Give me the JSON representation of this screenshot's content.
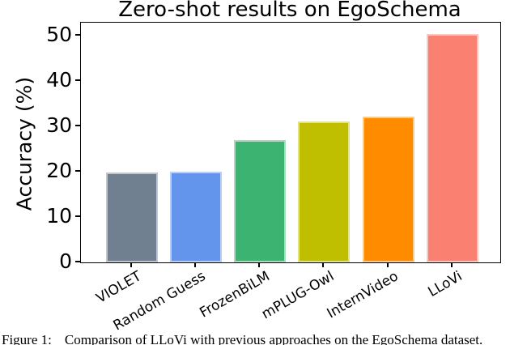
{
  "chart_data": {
    "type": "bar",
    "title": "Zero-shot results on EgoSchema",
    "xlabel": "",
    "ylabel": "Accuracy (%)",
    "categories": [
      "VIOLET",
      "Random Guess",
      "FrozenBiLM",
      "mPLUG-Owl",
      "InternVideo",
      "LLoVi"
    ],
    "values": [
      19.8,
      20.0,
      26.9,
      31.1,
      32.1,
      50.3
    ],
    "bar_colors": [
      "#708090",
      "#6495ed",
      "#3cb371",
      "#bfbf00",
      "#ff8c00",
      "#fa8072"
    ],
    "bar_edge_color": "rgba(255,255,255,0.55)",
    "yticks": [
      0,
      10,
      20,
      30,
      40,
      50
    ],
    "ylim": [
      0,
      52.8
    ],
    "grid": false,
    "legend_position": "none"
  },
  "caption": {
    "label": "Figure 1:",
    "text": "Comparison of LLoVi with previous approaches on the EgoSchema dataset."
  }
}
